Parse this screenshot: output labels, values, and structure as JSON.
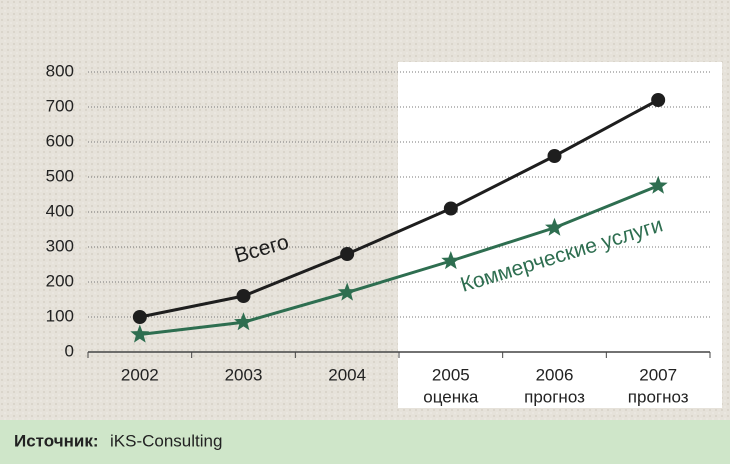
{
  "chart_data": {
    "type": "line",
    "categories": [
      "2002",
      "2003",
      "2004",
      "2005",
      "2006",
      "2007"
    ],
    "category_notes": [
      null,
      null,
      null,
      "оценка",
      "прогноз",
      "прогноз"
    ],
    "series": [
      {
        "name": "Всего",
        "color": "#1e1e1e",
        "marker": "circle",
        "values": [
          100,
          160,
          280,
          410,
          560,
          720
        ]
      },
      {
        "name": "Коммерческие услуги",
        "color": "#2e6e50",
        "marker": "star",
        "values": [
          50,
          85,
          170,
          260,
          355,
          475
        ]
      }
    ],
    "ylim": [
      0,
      800
    ],
    "yticks": [
      0,
      100,
      200,
      300,
      400,
      500,
      600,
      700,
      800
    ],
    "grid": true,
    "source_label": "Источник:",
    "source": "iKS-Consulting"
  }
}
